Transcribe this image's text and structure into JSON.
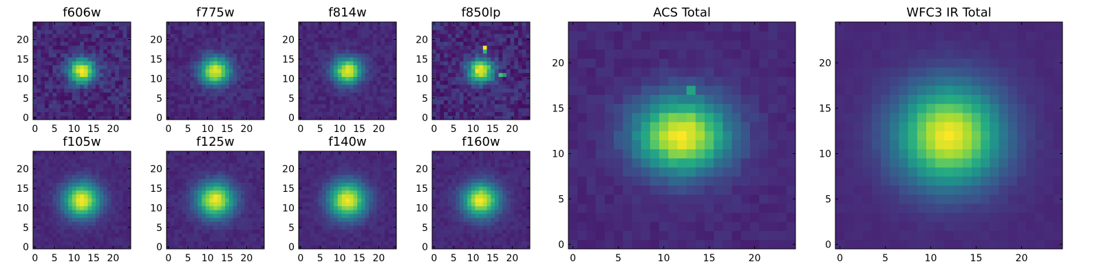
{
  "chart_data": [
    {
      "type": "heatmap",
      "title": "f606w",
      "grid": false,
      "colormap": "viridis",
      "xlim": [
        -0.5,
        24.5
      ],
      "ylim": [
        -0.5,
        24.5
      ],
      "xticks": [
        0,
        5,
        10,
        15,
        20
      ],
      "yticks": [
        0,
        5,
        10,
        15,
        20
      ],
      "xtick_labels": [
        "0",
        "5",
        "10",
        "15",
        "20"
      ],
      "ytick_labels": [
        "0",
        "5",
        "10",
        "15",
        "20"
      ],
      "peak": [
        12,
        12
      ],
      "sigma": [
        2.4,
        2.2
      ],
      "noise": 0.32,
      "hot_pixels": []
    },
    {
      "type": "heatmap",
      "title": "f775w",
      "grid": false,
      "colormap": "viridis",
      "xlim": [
        -0.5,
        24.5
      ],
      "ylim": [
        -0.5,
        24.5
      ],
      "xticks": [
        0,
        5,
        10,
        15,
        20
      ],
      "yticks": [
        0,
        5,
        10,
        15,
        20
      ],
      "xtick_labels": [
        "0",
        "5",
        "10",
        "15",
        "20"
      ],
      "ytick_labels": [
        "0",
        "5",
        "10",
        "15",
        "20"
      ],
      "peak": [
        12,
        12
      ],
      "sigma": [
        2.6,
        2.4
      ],
      "noise": 0.2,
      "hot_pixels": []
    },
    {
      "type": "heatmap",
      "title": "f814w",
      "grid": false,
      "colormap": "viridis",
      "xlim": [
        -0.5,
        24.5
      ],
      "ylim": [
        -0.5,
        24.5
      ],
      "xticks": [
        0,
        5,
        10,
        15,
        20
      ],
      "yticks": [
        0,
        5,
        10,
        15,
        20
      ],
      "xtick_labels": [
        "0",
        "5",
        "10",
        "15",
        "20"
      ],
      "ytick_labels": [
        "0",
        "5",
        "10",
        "15",
        "20"
      ],
      "peak": [
        12,
        12
      ],
      "sigma": [
        2.5,
        2.3
      ],
      "noise": 0.18,
      "hot_pixels": []
    },
    {
      "type": "heatmap",
      "title": "f850lp",
      "grid": false,
      "colormap": "viridis",
      "xlim": [
        -0.5,
        24.5
      ],
      "ylim": [
        -0.5,
        24.5
      ],
      "xticks": [
        0,
        5,
        10,
        15,
        20
      ],
      "yticks": [
        0,
        5,
        10,
        15,
        20
      ],
      "xtick_labels": [
        "0",
        "5",
        "10",
        "15",
        "20"
      ],
      "ytick_labels": [
        "0",
        "5",
        "10",
        "15",
        "20"
      ],
      "peak": [
        12,
        12
      ],
      "sigma": [
        2.3,
        2.1
      ],
      "noise": 0.35,
      "hot_pixels": [
        [
          13,
          18,
          1.0
        ],
        [
          13,
          17,
          0.65
        ],
        [
          17,
          11,
          0.7
        ],
        [
          18,
          11,
          0.55
        ]
      ]
    },
    {
      "type": "heatmap",
      "title": "f105w",
      "grid": false,
      "colormap": "viridis",
      "xlim": [
        -0.5,
        24.5
      ],
      "ylim": [
        -0.5,
        24.5
      ],
      "xticks": [
        0,
        5,
        10,
        15,
        20
      ],
      "yticks": [
        0,
        5,
        10,
        15,
        20
      ],
      "xtick_labels": [
        "0",
        "5",
        "10",
        "15",
        "20"
      ],
      "ytick_labels": [
        "0",
        "5",
        "10",
        "15",
        "20"
      ],
      "peak": [
        12,
        12
      ],
      "sigma": [
        3.2,
        3.1
      ],
      "noise": 0.12,
      "hot_pixels": []
    },
    {
      "type": "heatmap",
      "title": "f125w",
      "grid": false,
      "colormap": "viridis",
      "xlim": [
        -0.5,
        24.5
      ],
      "ylim": [
        -0.5,
        24.5
      ],
      "xticks": [
        0,
        5,
        10,
        15,
        20
      ],
      "yticks": [
        0,
        5,
        10,
        15,
        20
      ],
      "xtick_labels": [
        "0",
        "5",
        "10",
        "15",
        "20"
      ],
      "ytick_labels": [
        "0",
        "5",
        "10",
        "15",
        "20"
      ],
      "peak": [
        12,
        12
      ],
      "sigma": [
        3.3,
        3.1
      ],
      "noise": 0.14,
      "hot_pixels": []
    },
    {
      "type": "heatmap",
      "title": "f140w",
      "grid": false,
      "colormap": "viridis",
      "xlim": [
        -0.5,
        24.5
      ],
      "ylim": [
        -0.5,
        24.5
      ],
      "xticks": [
        0,
        5,
        10,
        15,
        20
      ],
      "yticks": [
        0,
        5,
        10,
        15,
        20
      ],
      "xtick_labels": [
        "0",
        "5",
        "10",
        "15",
        "20"
      ],
      "ytick_labels": [
        "0",
        "5",
        "10",
        "15",
        "20"
      ],
      "peak": [
        12,
        12
      ],
      "sigma": [
        3.3,
        3.2
      ],
      "noise": 0.12,
      "hot_pixels": []
    },
    {
      "type": "heatmap",
      "title": "f160w",
      "grid": false,
      "colormap": "viridis",
      "xlim": [
        -0.5,
        24.5
      ],
      "ylim": [
        -0.5,
        24.5
      ],
      "xticks": [
        0,
        5,
        10,
        15,
        20
      ],
      "yticks": [
        0,
        5,
        10,
        15,
        20
      ],
      "xtick_labels": [
        "0",
        "5",
        "10",
        "15",
        "20"
      ],
      "ytick_labels": [
        "0",
        "5",
        "10",
        "15",
        "20"
      ],
      "peak": [
        12,
        12
      ],
      "sigma": [
        3.2,
        3.0
      ],
      "noise": 0.13,
      "hot_pixels": []
    },
    {
      "type": "heatmap",
      "title": "ACS Total",
      "grid": false,
      "colormap": "viridis",
      "xlim": [
        -0.5,
        24.5
      ],
      "ylim": [
        -0.5,
        24.5
      ],
      "xticks": [
        0,
        5,
        10,
        15,
        20
      ],
      "yticks": [
        0,
        5,
        10,
        15,
        20
      ],
      "xtick_labels": [
        "0",
        "5",
        "10",
        "15",
        "20"
      ],
      "ytick_labels": [
        "0",
        "5",
        "10",
        "15",
        "20"
      ],
      "peak": [
        12,
        12
      ],
      "sigma": [
        3.6,
        2.9
      ],
      "noise": 0.12,
      "hot_pixels": [
        [
          13,
          17,
          0.58
        ]
      ]
    },
    {
      "type": "heatmap",
      "title": "WFC3 IR Total",
      "grid": false,
      "colormap": "viridis",
      "xlim": [
        -0.5,
        24.5
      ],
      "ylim": [
        -0.5,
        24.5
      ],
      "xticks": [
        0,
        5,
        10,
        15,
        20
      ],
      "yticks": [
        0,
        5,
        10,
        15,
        20
      ],
      "xtick_labels": [
        "0",
        "5",
        "10",
        "15",
        "20"
      ],
      "ytick_labels": [
        "0",
        "5",
        "10",
        "15",
        "20"
      ],
      "peak": [
        12,
        12
      ],
      "sigma": [
        4.0,
        3.8
      ],
      "noise": 0.05,
      "hot_pixels": []
    }
  ]
}
